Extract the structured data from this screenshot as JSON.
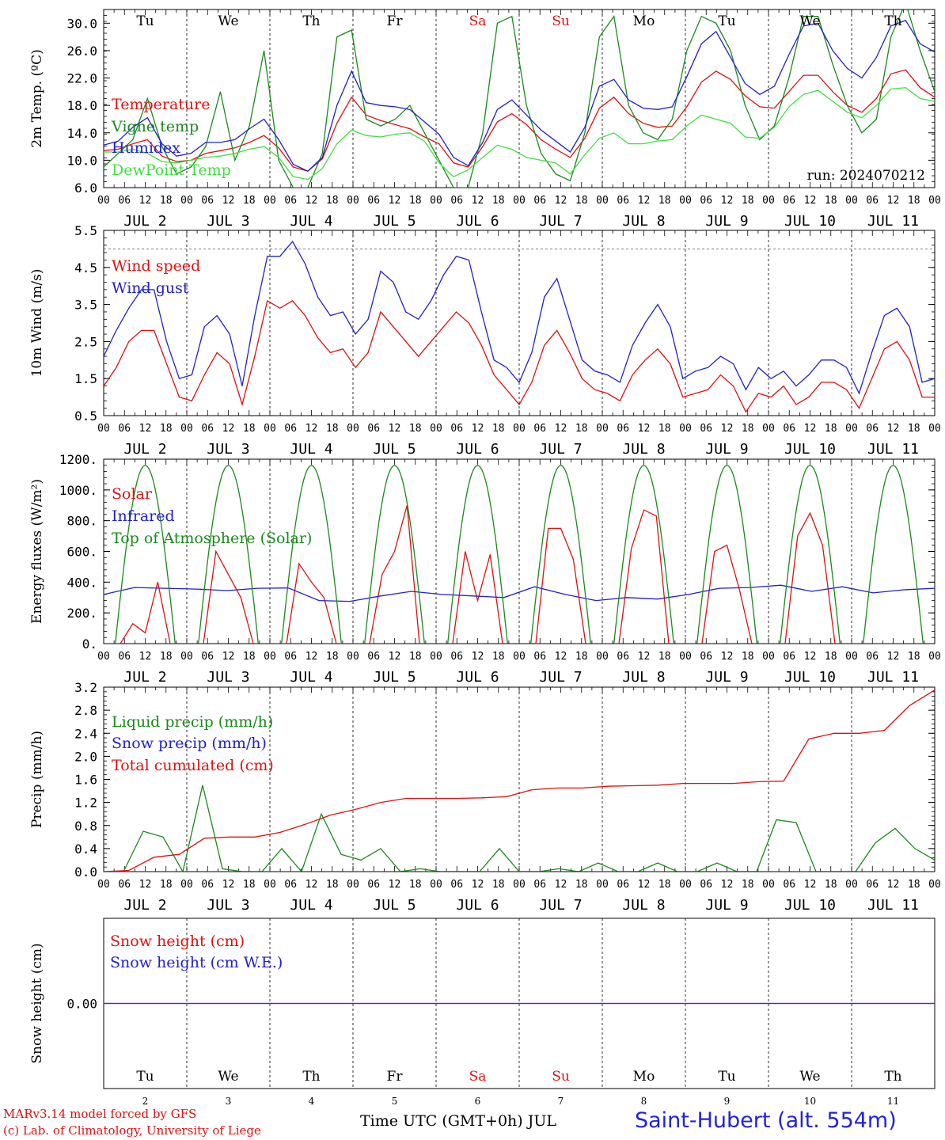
{
  "chart_data": [
    {
      "type": "line",
      "ylabel": "2m Temp. (ºC)",
      "ylim": [
        6.0,
        32.0
      ],
      "yticks": [
        "6.0",
        "10.0",
        "14.0",
        "18.0",
        "22.0",
        "26.0",
        "30.0"
      ],
      "annotation": "run: 2024070212",
      "series": [
        {
          "name": "Temperature",
          "color": "#e01010",
          "values": [
            11.4,
            11.6,
            12.4,
            13.0,
            10.6,
            9.8,
            10.0,
            11.0,
            11.4,
            11.8,
            12.6,
            13.6,
            11.8,
            9.0,
            8.4,
            10.2,
            15.4,
            19.2,
            16.6,
            15.8,
            15.2,
            14.6,
            13.4,
            12.4,
            9.6,
            9.0,
            12.0,
            15.6,
            16.8,
            15.2,
            13.0,
            11.6,
            10.4,
            13.2,
            17.6,
            19.2,
            16.8,
            15.4,
            14.8,
            15.0,
            17.8,
            21.4,
            23.0,
            21.8,
            19.4,
            17.8,
            17.6,
            20.0,
            22.4,
            22.4,
            20.0,
            18.0,
            17.0,
            19.0,
            22.6,
            23.2,
            20.6,
            19.2
          ]
        },
        {
          "name": "Vigne temp",
          "color": "#1a8a1a",
          "values": [
            9.0,
            11.0,
            13.0,
            19.0,
            12.0,
            8.0,
            9.0,
            12.0,
            20.0,
            10.0,
            15.0,
            26.0,
            10.0,
            6.0,
            6.0,
            11.0,
            28.0,
            29.0,
            16.0,
            15.0,
            16.0,
            18.0,
            14.0,
            10.0,
            6.0,
            6.0,
            14.0,
            30.0,
            31.0,
            18.0,
            11.0,
            8.0,
            7.0,
            14.0,
            28.0,
            31.0,
            18.0,
            14.0,
            13.0,
            16.0,
            26.0,
            31.0,
            30.0,
            26.0,
            18.0,
            13.0,
            15.0,
            22.0,
            31.0,
            31.0,
            24.0,
            18.0,
            14.0,
            16.0,
            28.0,
            33.0,
            26.0,
            20.0
          ]
        },
        {
          "name": "Humidex",
          "color": "#2020d0",
          "values": [
            12.2,
            12.8,
            14.8,
            16.2,
            12.4,
            10.6,
            11.0,
            12.6,
            12.6,
            13.0,
            14.6,
            16.0,
            13.0,
            9.4,
            8.4,
            10.4,
            18.0,
            23.0,
            18.4,
            18.0,
            17.8,
            17.4,
            15.6,
            13.8,
            10.4,
            9.2,
            12.6,
            17.4,
            18.8,
            16.6,
            14.4,
            12.8,
            11.2,
            14.8,
            20.8,
            21.8,
            18.8,
            17.6,
            17.4,
            17.8,
            22.2,
            27.0,
            28.8,
            25.0,
            21.2,
            19.6,
            20.8,
            25.4,
            29.6,
            30.0,
            26.0,
            23.4,
            22.0,
            25.0,
            29.6,
            30.4,
            27.0,
            25.8
          ]
        },
        {
          "name": "DewPoint Temp",
          "color": "#40e040",
          "values": [
            11.2,
            11.2,
            11.6,
            11.0,
            9.8,
            9.6,
            10.0,
            10.4,
            10.6,
            11.0,
            11.6,
            12.0,
            10.4,
            7.6,
            7.2,
            8.8,
            12.4,
            14.4,
            13.6,
            13.4,
            13.8,
            14.0,
            12.8,
            9.6,
            7.6,
            8.6,
            10.4,
            12.2,
            11.6,
            10.4,
            10.0,
            9.6,
            8.0,
            10.8,
            13.2,
            14.0,
            12.4,
            12.4,
            12.8,
            13.0,
            15.0,
            16.6,
            16.0,
            15.4,
            13.4,
            13.2,
            14.8,
            17.8,
            19.6,
            20.2,
            18.6,
            17.0,
            16.2,
            18.0,
            20.4,
            20.6,
            19.0,
            18.6
          ]
        }
      ]
    },
    {
      "type": "line",
      "ylabel": "10m Wind (m/s)",
      "ylim": [
        0.5,
        5.5
      ],
      "yticks": [
        "0.5",
        "1.5",
        "2.5",
        "3.5",
        "4.5",
        "5.5"
      ],
      "reference_line": 5.0,
      "series": [
        {
          "name": "Wind speed",
          "color": "#e01010",
          "values": [
            1.3,
            1.8,
            2.5,
            2.8,
            2.8,
            1.9,
            1.0,
            0.9,
            1.6,
            2.2,
            1.9,
            0.8,
            2.1,
            3.6,
            3.4,
            3.6,
            3.2,
            2.6,
            2.2,
            2.3,
            1.8,
            2.2,
            3.3,
            2.9,
            2.5,
            2.1,
            2.5,
            2.9,
            3.3,
            3.0,
            2.4,
            1.6,
            1.2,
            0.8,
            1.4,
            2.4,
            2.8,
            2.2,
            1.5,
            1.2,
            1.1,
            0.9,
            1.6,
            2.0,
            2.3,
            1.9,
            1.0,
            1.1,
            1.2,
            1.6,
            1.3,
            0.6,
            1.1,
            1.0,
            1.3,
            0.8,
            1.0,
            1.4,
            1.4,
            1.2,
            0.7,
            1.5,
            2.3,
            2.5,
            2.0,
            1.0,
            1.0
          ]
        },
        {
          "name": "Wind gust",
          "color": "#2020d0",
          "values": [
            2.1,
            2.8,
            3.4,
            3.9,
            3.9,
            2.5,
            1.5,
            1.6,
            2.9,
            3.2,
            2.7,
            1.3,
            3.2,
            4.8,
            4.8,
            5.2,
            4.6,
            3.7,
            3.2,
            3.3,
            2.7,
            3.1,
            4.4,
            4.1,
            3.3,
            3.1,
            3.6,
            4.3,
            4.8,
            4.7,
            3.3,
            2.0,
            1.8,
            1.4,
            2.2,
            3.7,
            4.2,
            3.1,
            2.0,
            1.7,
            1.6,
            1.4,
            2.4,
            3.0,
            3.5,
            2.9,
            1.5,
            1.7,
            1.8,
            2.1,
            1.9,
            1.2,
            1.8,
            1.5,
            1.7,
            1.3,
            1.6,
            2.0,
            2.0,
            1.8,
            1.1,
            2.2,
            3.2,
            3.4,
            2.9,
            1.4,
            1.5
          ]
        }
      ]
    },
    {
      "type": "line",
      "ylabel": "Energy fluxes (W/m²)",
      "ylim": [
        0,
        1200
      ],
      "yticks": [
        "0.",
        "200.",
        "400.",
        "600.",
        "800.",
        "1000.",
        "1200."
      ],
      "series": [
        {
          "name": "Solar",
          "color": "#e01010",
          "values": [
            130,
            70,
            400,
            600,
            450,
            300,
            520,
            400,
            300,
            450,
            600,
            900,
            600,
            280,
            580,
            750,
            750,
            550,
            620,
            870,
            830,
            600,
            640,
            350,
            700,
            850,
            640
          ]
        },
        {
          "name": "Infrared",
          "color": "#2020d0",
          "values": [
            320,
            365,
            360,
            355,
            345,
            360,
            362,
            280,
            275,
            310,
            340,
            320,
            310,
            300,
            370,
            320,
            280,
            300,
            290,
            320,
            360,
            365,
            380,
            340,
            370,
            330,
            350,
            360
          ]
        },
        {
          "name": "Top of Atmosphere (Solar)",
          "color": "#1a8a1a",
          "values": [
            1160,
            1160,
            1160,
            1160,
            1160,
            1160,
            1160,
            1160,
            1160,
            1160
          ]
        }
      ]
    },
    {
      "type": "line",
      "ylabel": "Precip (mm/h)",
      "ylim": [
        0.0,
        3.2
      ],
      "yticks": [
        "0.0",
        "0.4",
        "0.8",
        "1.2",
        "1.6",
        "2.0",
        "2.4",
        "2.8",
        "3.2"
      ],
      "series": [
        {
          "name": "Liquid precip (mm/h)",
          "color": "#1a8a1a",
          "values": [
            0,
            0,
            0.7,
            0.6,
            0,
            1.5,
            0.05,
            0,
            0,
            0.4,
            0,
            1.0,
            0.3,
            0.2,
            0.4,
            0,
            0.05,
            0,
            0,
            0,
            0.4,
            0,
            0,
            0.05,
            0,
            0.15,
            0,
            0,
            0.15,
            0,
            0,
            0.15,
            0,
            0,
            0.9,
            0.85,
            0,
            0,
            0,
            0.5,
            0.75,
            0.4,
            0.2
          ]
        },
        {
          "name": "Snow precip (mm/h)",
          "color": "#2020d0",
          "values": [
            0,
            0,
            0,
            0,
            0,
            0,
            0,
            0,
            0,
            0,
            0
          ]
        },
        {
          "name": "Total cumulated (cm)",
          "color": "#e01010",
          "values": [
            0,
            0.02,
            0.25,
            0.3,
            0.58,
            0.6,
            0.6,
            0.68,
            0.82,
            0.98,
            1.08,
            1.2,
            1.27,
            1.27,
            1.27,
            1.28,
            1.3,
            1.42,
            1.45,
            1.45,
            1.48,
            1.49,
            1.5,
            1.53,
            1.53,
            1.53,
            1.56,
            1.57,
            2.3,
            2.4,
            2.4,
            2.45,
            2.88,
            3.15
          ]
        }
      ]
    },
    {
      "type": "line",
      "ylabel": "Snow height (cm)",
      "yticks": [
        "0.00"
      ],
      "series": [
        {
          "name": "Snow height (cm)",
          "color": "#e01010",
          "values": [
            0,
            0
          ]
        },
        {
          "name": "Snow height (cm W.E.)",
          "color": "#2020d0",
          "values": [
            0,
            0
          ]
        }
      ]
    }
  ],
  "x_axis": {
    "hour_ticks": [
      "00",
      "06",
      "12",
      "18"
    ],
    "end_tick": "00",
    "dates": [
      "JUL  2",
      "JUL  3",
      "JUL  4",
      "JUL  5",
      "JUL  6",
      "JUL  7",
      "JUL  8",
      "JUL  9",
      "JUL 10",
      "JUL 11"
    ],
    "weekdays": [
      "Tu",
      "We",
      "Th",
      "Fr",
      "Sa",
      "Su",
      "Mo",
      "Tu",
      "We",
      "Th"
    ],
    "weekend_color": "#e01010",
    "bottom_day_numbers": [
      "2",
      "3",
      "4",
      "5",
      "6",
      "7",
      "8",
      "9",
      "10",
      "11"
    ]
  },
  "footer": {
    "model_line": "MARv3.14 model forced by GFS",
    "credit_line": "(c) Lab. of Climatology, University of Liege",
    "time_label": "Time UTC (GMT+0h) JUL",
    "station": "Saint-Hubert (alt. 554m)"
  }
}
